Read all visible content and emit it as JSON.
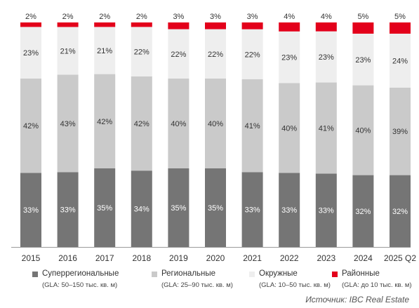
{
  "colors": {
    "superregional": "#757575",
    "regional": "#cacaca",
    "district": "#eeeeee",
    "neighborhood": "#e3001b",
    "axis": "#9a9a9a"
  },
  "chart_data": {
    "type": "bar",
    "stacked": true,
    "normalized": true,
    "categories": [
      "2015",
      "2016",
      "2017",
      "2018",
      "2019",
      "2020",
      "2021",
      "2022",
      "2023",
      "2024",
      "2025 Q2"
    ],
    "series": [
      {
        "name": "Суперрегиональные",
        "values": [
          33,
          33,
          35,
          34,
          35,
          35,
          33,
          33,
          33,
          32,
          32
        ]
      },
      {
        "name": "Региональные",
        "values": [
          42,
          43,
          42,
          42,
          40,
          40,
          41,
          40,
          41,
          40,
          39
        ]
      },
      {
        "name": "Окружные",
        "values": [
          23,
          21,
          21,
          22,
          22,
          22,
          22,
          23,
          23,
          23,
          24
        ]
      },
      {
        "name": "Районные",
        "values": [
          2,
          2,
          2,
          2,
          3,
          3,
          3,
          4,
          4,
          5,
          5
        ]
      }
    ],
    "value_suffix": "%",
    "legend_position": "bottom",
    "grid": false
  },
  "legend": [
    {
      "label": "Суперрегиональные",
      "sub": "(GLA: 50–150 тыс. кв. м)"
    },
    {
      "label": "Региональные",
      "sub": "(GLA: 25–90 тыс. кв. м)"
    },
    {
      "label": "Окружные",
      "sub": "(GLA: 10–50 тыс. кв. м)"
    },
    {
      "label": "Районные",
      "sub": "(GLA: до 10 тыс. кв. м)"
    }
  ],
  "source": "Источник: IBC Real Estate"
}
